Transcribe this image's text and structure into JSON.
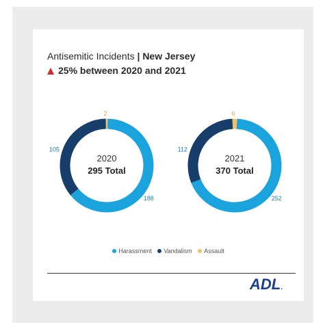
{
  "title": {
    "prefix": "Antisemitic Incidents",
    "separator": "|",
    "region": "New Jersey"
  },
  "change": {
    "text": "25% between 2020 and 2021",
    "direction": "up",
    "color": "#d7282f"
  },
  "chart_data": [
    {
      "type": "pie",
      "variant": "donut",
      "year_label": "2020",
      "total_label": "295 Total",
      "categories": [
        "Harassment",
        "Vandalism",
        "Assault"
      ],
      "values": [
        188,
        105,
        2
      ],
      "colors": [
        "#1aa3dd",
        "#173e6b",
        "#f2c26b"
      ]
    },
    {
      "type": "pie",
      "variant": "donut",
      "year_label": "2021",
      "total_label": "370 Total",
      "categories": [
        "Harassment",
        "Vandalism",
        "Assault"
      ],
      "values": [
        252,
        112,
        6
      ],
      "colors": [
        "#1aa3dd",
        "#173e6b",
        "#f2c26b"
      ]
    }
  ],
  "legend": [
    {
      "label": "Harassment",
      "color": "#1aa3dd"
    },
    {
      "label": "Vandalism",
      "color": "#173e6b"
    },
    {
      "label": "Assault",
      "color": "#f2c26b"
    }
  ],
  "logo": {
    "text": "ADL",
    "suffix": "."
  }
}
